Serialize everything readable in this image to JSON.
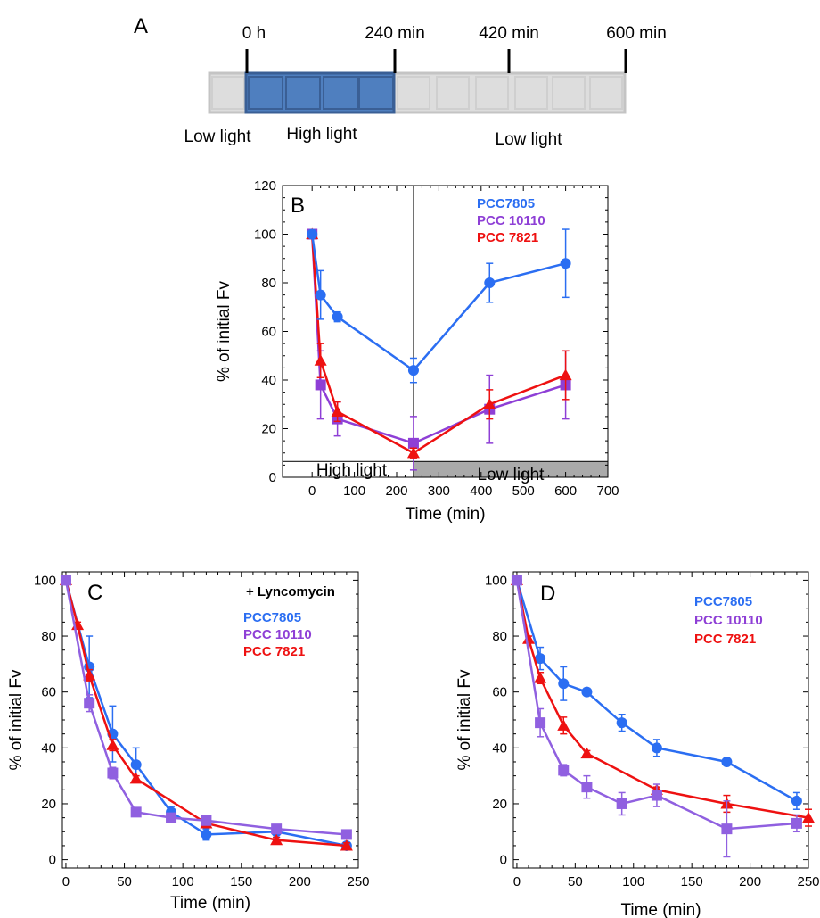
{
  "colors": {
    "PCC7805": "#2b6ef2",
    "PCC10110": "#8e3fd6",
    "PCC10110_D": "#9060e0",
    "PCC7821": "#ee1111",
    "high_box": "#4f7fbf",
    "low_box": "#dddddd",
    "shade": "#aaaaaa"
  },
  "timeline": {
    "panel": "A",
    "ticks": [
      "0 h",
      "240 min",
      "420 min",
      "600 min"
    ],
    "labels": [
      "Low light",
      "High light",
      "Low light"
    ]
  },
  "chart_data": [
    {
      "panel": "B",
      "type": "line",
      "xlabel": "Time (min)",
      "ylabel": "% of initial Fv",
      "xlim": [
        -70,
        700
      ],
      "ylim": [
        0,
        120
      ],
      "xticks": [
        0,
        100,
        200,
        300,
        400,
        500,
        600,
        700
      ],
      "yticks": [
        0,
        20,
        40,
        60,
        80,
        100,
        120
      ],
      "region_labels": [
        "High light",
        "Low light"
      ],
      "divider_x": 240,
      "legend": [
        "PCC7805",
        "PCC 10110",
        "PCC 7821"
      ],
      "series": [
        {
          "name": "PCC7805",
          "marker": "circle",
          "x": [
            0,
            20,
            60,
            240,
            420,
            600
          ],
          "y": [
            100,
            75,
            66,
            44,
            80,
            88
          ],
          "err": [
            0,
            10,
            2,
            5,
            8,
            14
          ]
        },
        {
          "name": "PCC 10110",
          "marker": "square",
          "x": [
            0,
            20,
            60,
            240,
            420,
            600
          ],
          "y": [
            100,
            38,
            24,
            14,
            28,
            38
          ],
          "err": [
            0,
            14,
            7,
            11,
            14,
            14
          ]
        },
        {
          "name": "PCC 7821",
          "marker": "triangle",
          "x": [
            0,
            20,
            60,
            240,
            420,
            600
          ],
          "y": [
            100,
            48,
            27,
            10,
            30,
            42
          ],
          "err": [
            0,
            7,
            4,
            2,
            6,
            10
          ]
        }
      ]
    },
    {
      "panel": "C",
      "type": "line",
      "annotation": "+ Lyncomycin",
      "xlabel": "Time (min)",
      "ylabel": "% of initial Fv",
      "xlim": [
        -3,
        250
      ],
      "ylim": [
        -3,
        103
      ],
      "xticks": [
        0,
        50,
        100,
        150,
        200,
        250
      ],
      "yticks": [
        0,
        20,
        40,
        60,
        80,
        100
      ],
      "legend": [
        "PCC7805",
        "PCC 10110",
        "PCC 7821"
      ],
      "series": [
        {
          "name": "PCC7805",
          "marker": "circle",
          "x": [
            0,
            20,
            40,
            60,
            90,
            120,
            180,
            240
          ],
          "y": [
            100,
            69,
            45,
            34,
            17,
            9,
            10,
            5
          ],
          "err": [
            0,
            11,
            10,
            6,
            2,
            2,
            2,
            1
          ]
        },
        {
          "name": "PCC 10110",
          "marker": "square",
          "x": [
            0,
            20,
            40,
            60,
            90,
            120,
            180,
            240
          ],
          "y": [
            100,
            56,
            31,
            17,
            15,
            14,
            11,
            9
          ],
          "err": [
            0,
            3,
            2,
            1,
            1,
            1,
            1,
            1
          ]
        },
        {
          "name": "PCC 7821",
          "marker": "triangle",
          "x": [
            0,
            10,
            20,
            40,
            60,
            120,
            180,
            240
          ],
          "y": [
            100,
            84,
            66,
            41,
            29,
            13,
            7,
            5
          ],
          "err": [
            0,
            1,
            2,
            2,
            1,
            1,
            1,
            1
          ]
        }
      ]
    },
    {
      "panel": "D",
      "type": "line",
      "xlabel": "Time (min)",
      "ylabel": "% of initial Fv",
      "xlim": [
        -3,
        250
      ],
      "ylim": [
        -3,
        103
      ],
      "xticks": [
        0,
        50,
        100,
        150,
        200,
        250
      ],
      "yticks": [
        0,
        20,
        40,
        60,
        80,
        100
      ],
      "legend": [
        "PCC7805",
        "PCC 10110",
        "PCC 7821"
      ],
      "series": [
        {
          "name": "PCC7805",
          "marker": "circle",
          "x": [
            0,
            20,
            40,
            60,
            90,
            120,
            180,
            240
          ],
          "y": [
            100,
            72,
            63,
            60,
            49,
            40,
            35,
            21
          ],
          "err": [
            0,
            4,
            6,
            1,
            3,
            3,
            1,
            3
          ]
        },
        {
          "name": "PCC 10110",
          "marker": "square",
          "x": [
            0,
            20,
            40,
            60,
            90,
            120,
            180,
            240
          ],
          "y": [
            100,
            49,
            32,
            26,
            20,
            23,
            11,
            13
          ],
          "err": [
            0,
            5,
            2,
            4,
            4,
            4,
            10,
            3
          ]
        },
        {
          "name": "PCC 7821",
          "marker": "triangle",
          "x": [
            0,
            10,
            20,
            40,
            60,
            120,
            180,
            250
          ],
          "y": [
            100,
            79,
            65,
            48,
            38,
            25,
            20,
            15
          ],
          "err": [
            0,
            1,
            2,
            3,
            1,
            1,
            3,
            3
          ]
        }
      ]
    }
  ]
}
